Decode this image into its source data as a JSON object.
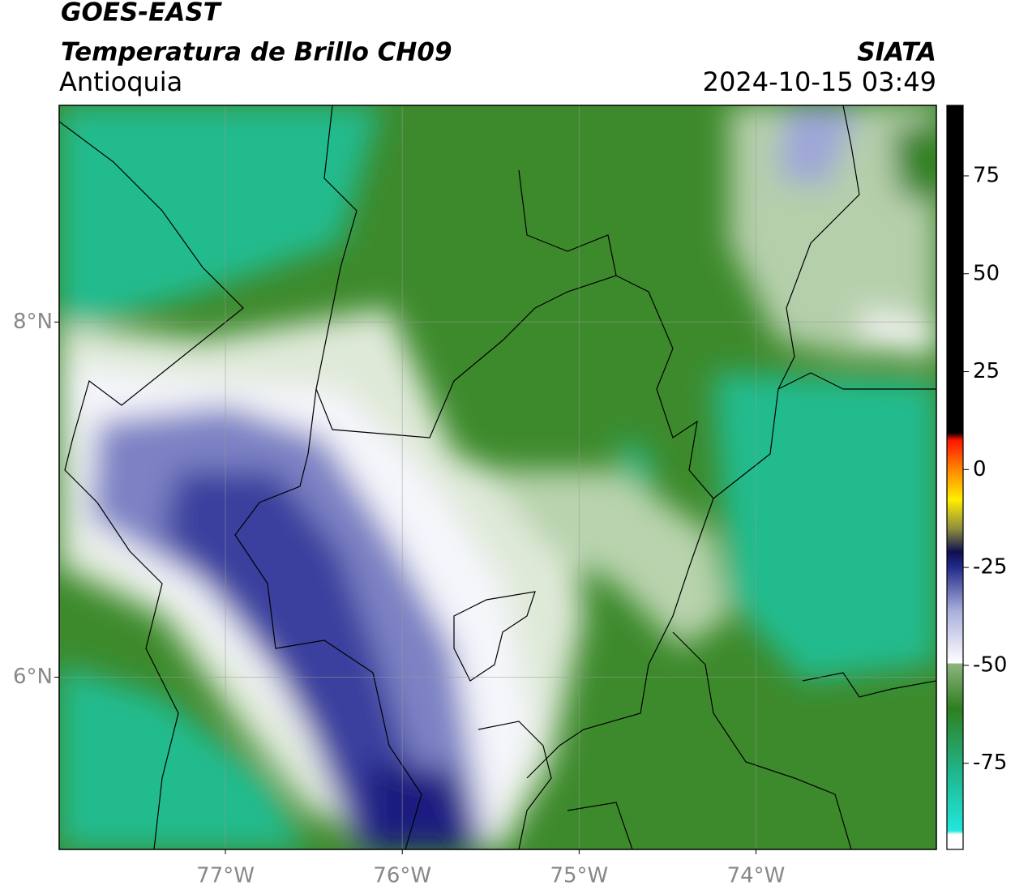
{
  "header": {
    "title": "GOES-EAST",
    "subtitle": "Temperatura de Brillo CH09",
    "region": "Antioquia",
    "source": "SIATA",
    "datetime": "2024-10-15 03:49"
  },
  "map": {
    "xlim": [
      -77.94,
      -72.98
    ],
    "ylim": [
      5.03,
      9.22
    ],
    "xticks": [
      {
        "value": -77,
        "label": "77°W"
      },
      {
        "value": -76,
        "label": "76°W"
      },
      {
        "value": -75,
        "label": "75°W"
      },
      {
        "value": -74,
        "label": "74°W"
      }
    ],
    "yticks": [
      {
        "value": 8,
        "label": "8°N"
      },
      {
        "value": 6,
        "label": "6°N"
      }
    ],
    "grid": true
  },
  "colorbar": {
    "lim": [
      -97,
      93
    ],
    "ticks": [
      75,
      50,
      25,
      0,
      -25,
      -50,
      -75
    ]
  }
}
